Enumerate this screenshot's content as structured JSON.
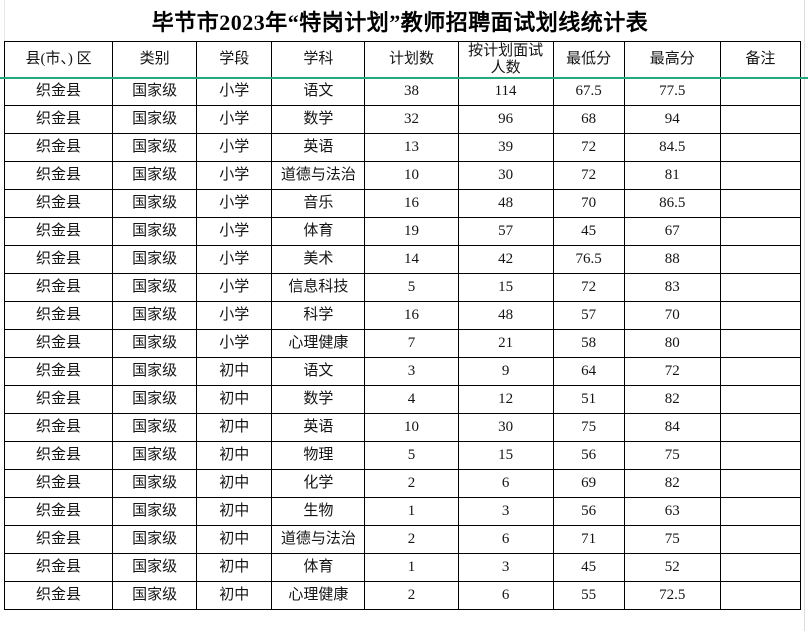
{
  "title": "毕节市2023年“特岗计划”教师招聘面试划线统计表",
  "table": {
    "headers": [
      "县(市、) 区",
      "类别",
      "学段",
      "学科",
      "计划数",
      "按计划面试\n人数",
      "最低分",
      "最高分",
      "备注"
    ],
    "rows": [
      [
        "织金县",
        "国家级",
        "小学",
        "语文",
        "38",
        "114",
        "67.5",
        "77.5",
        ""
      ],
      [
        "织金县",
        "国家级",
        "小学",
        "数学",
        "32",
        "96",
        "68",
        "94",
        ""
      ],
      [
        "织金县",
        "国家级",
        "小学",
        "英语",
        "13",
        "39",
        "72",
        "84.5",
        ""
      ],
      [
        "织金县",
        "国家级",
        "小学",
        "道德与法治",
        "10",
        "30",
        "72",
        "81",
        ""
      ],
      [
        "织金县",
        "国家级",
        "小学",
        "音乐",
        "16",
        "48",
        "70",
        "86.5",
        ""
      ],
      [
        "织金县",
        "国家级",
        "小学",
        "体育",
        "19",
        "57",
        "45",
        "67",
        ""
      ],
      [
        "织金县",
        "国家级",
        "小学",
        "美术",
        "14",
        "42",
        "76.5",
        "88",
        ""
      ],
      [
        "织金县",
        "国家级",
        "小学",
        "信息科技",
        "5",
        "15",
        "72",
        "83",
        ""
      ],
      [
        "织金县",
        "国家级",
        "小学",
        "科学",
        "16",
        "48",
        "57",
        "70",
        ""
      ],
      [
        "织金县",
        "国家级",
        "小学",
        "心理健康",
        "7",
        "21",
        "58",
        "80",
        ""
      ],
      [
        "织金县",
        "国家级",
        "初中",
        "语文",
        "3",
        "9",
        "64",
        "72",
        ""
      ],
      [
        "织金县",
        "国家级",
        "初中",
        "数学",
        "4",
        "12",
        "51",
        "82",
        ""
      ],
      [
        "织金县",
        "国家级",
        "初中",
        "英语",
        "10",
        "30",
        "75",
        "84",
        ""
      ],
      [
        "织金县",
        "国家级",
        "初中",
        "物理",
        "5",
        "15",
        "56",
        "75",
        ""
      ],
      [
        "织金县",
        "国家级",
        "初中",
        "化学",
        "2",
        "6",
        "69",
        "82",
        ""
      ],
      [
        "织金县",
        "国家级",
        "初中",
        "生物",
        "1",
        "3",
        "56",
        "63",
        ""
      ],
      [
        "织金县",
        "国家级",
        "初中",
        "道德与法治",
        "2",
        "6",
        "71",
        "75",
        ""
      ],
      [
        "织金县",
        "国家级",
        "初中",
        "体育",
        "1",
        "3",
        "45",
        "52",
        ""
      ],
      [
        "织金县",
        "国家级",
        "初中",
        "心理健康",
        "2",
        "6",
        "55",
        "72.5",
        ""
      ]
    ]
  },
  "colors": {
    "freeze_line": "#27a77a",
    "border": "#000000",
    "gridline": "#dcdcdc"
  }
}
